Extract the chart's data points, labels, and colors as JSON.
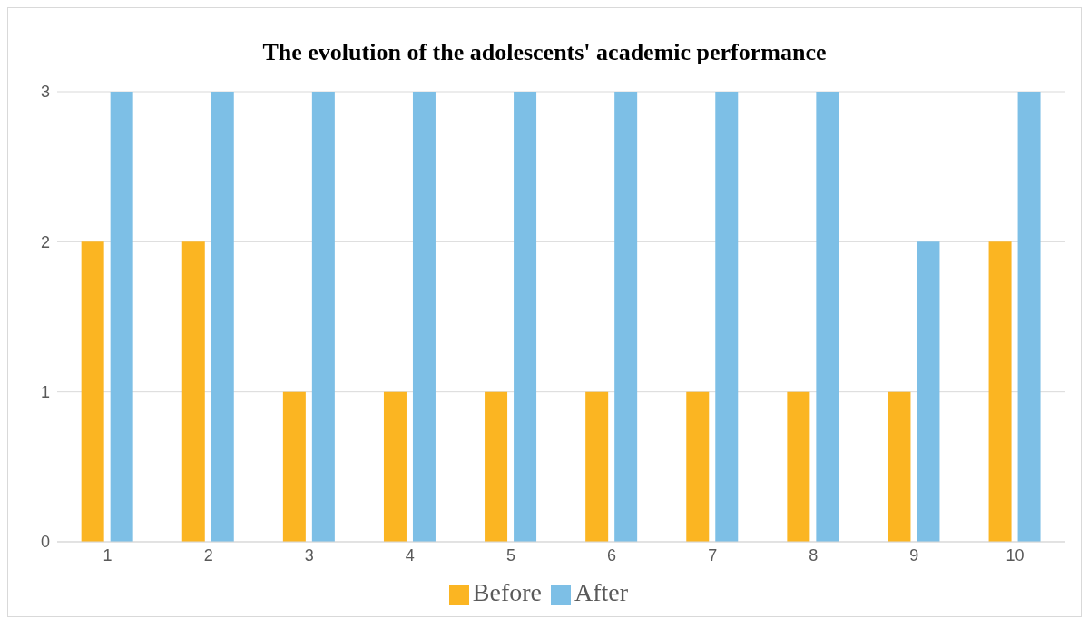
{
  "chart_data": {
    "type": "bar",
    "title": "The evolution of the adolescents' academic performance",
    "categories": [
      "1",
      "2",
      "3",
      "4",
      "5",
      "6",
      "7",
      "8",
      "9",
      "10"
    ],
    "series": [
      {
        "name": "Before",
        "color": "#fbb522",
        "values": [
          2,
          2,
          1,
          1,
          1,
          1,
          1,
          1,
          1,
          2
        ]
      },
      {
        "name": "After",
        "color": "#7dbfe6",
        "values": [
          3,
          3,
          3,
          3,
          3,
          3,
          3,
          3,
          2,
          3
        ]
      }
    ],
    "ylim": [
      0,
      3
    ],
    "yticks": [
      0,
      1,
      2,
      3
    ],
    "grid": "y",
    "legend": "bottom"
  }
}
